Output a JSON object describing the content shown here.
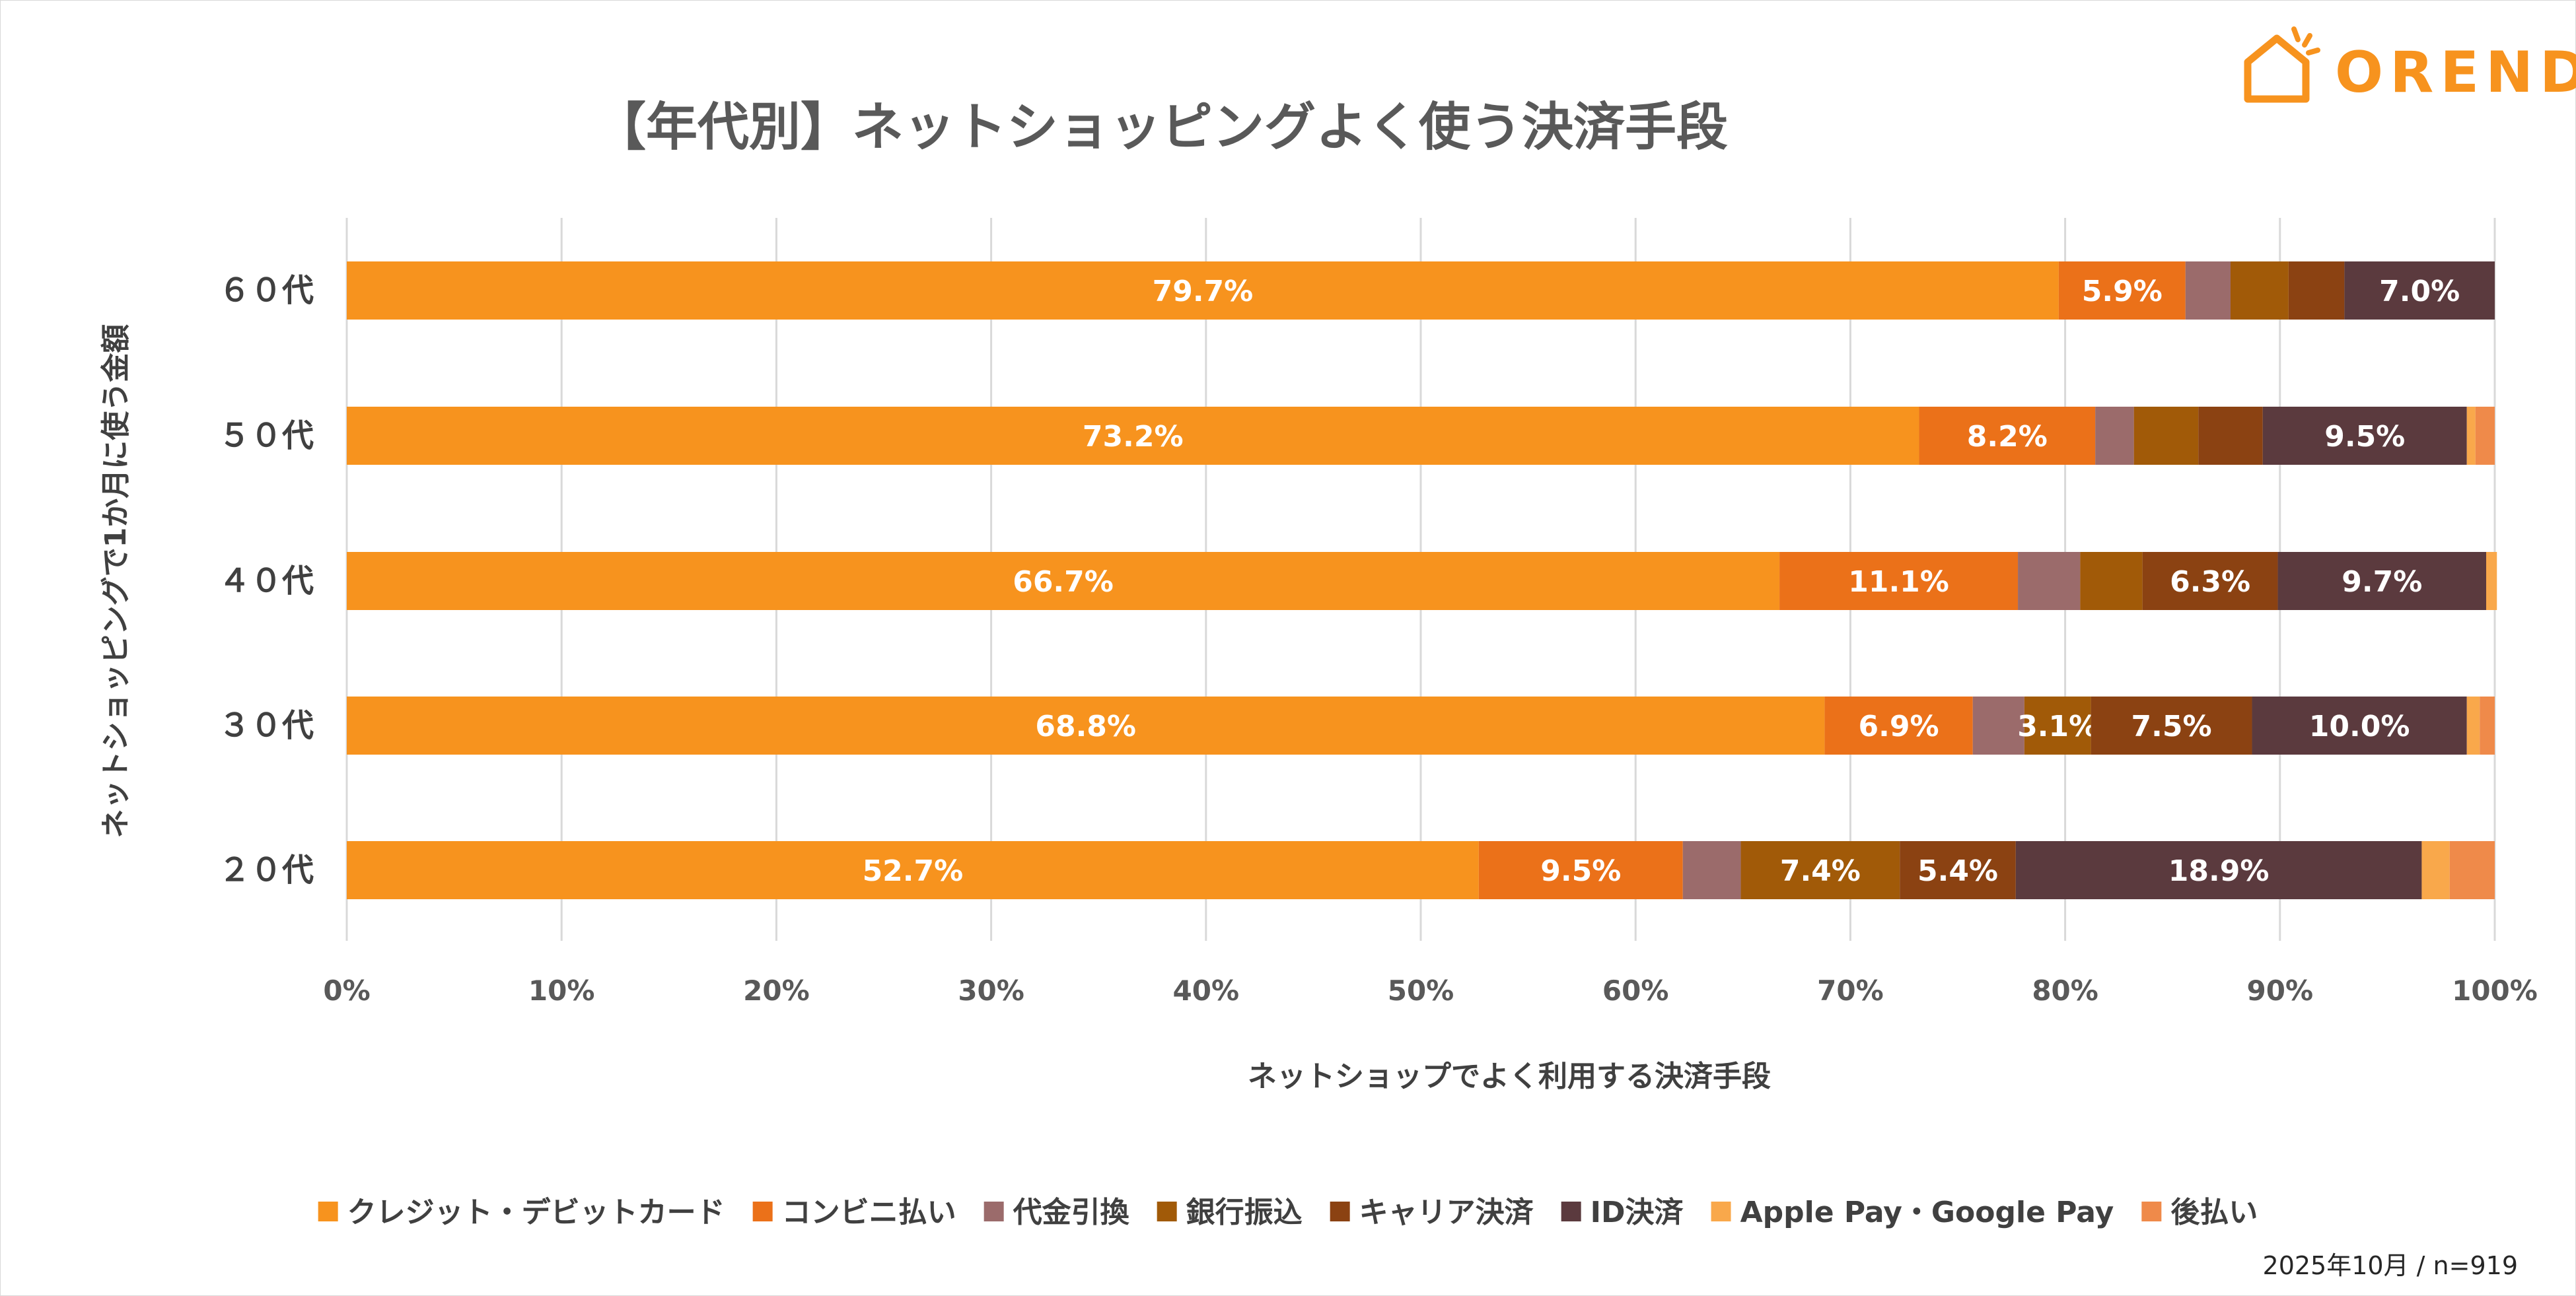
{
  "title": "【年代別】ネットショッピングよく使う決済手段",
  "logo_text": "OREND",
  "footnote": "2025年10月 / n=919",
  "chart_data": {
    "type": "bar",
    "orientation": "horizontal",
    "stacked": "percent",
    "xlabel": "ネットショップでよく利用する決済手段",
    "ylabel": "ネットショッピングで1か月に使う金額",
    "xlim": [
      0,
      100
    ],
    "xticks": [
      "0%",
      "10%",
      "20%",
      "30%",
      "40%",
      "50%",
      "60%",
      "70%",
      "80%",
      "90%",
      "100%"
    ],
    "grid": true,
    "legend_position": "bottom",
    "categories": [
      "６０代",
      "５０代",
      "４０代",
      "３０代",
      "２０代"
    ],
    "series": [
      {
        "name": "クレジット・デビットカード",
        "color": "#f7931e",
        "values": [
          79.7,
          73.2,
          66.7,
          68.8,
          52.7
        ],
        "labels": [
          "79.7%",
          "73.2%",
          "66.7%",
          "68.8%",
          "52.7%"
        ]
      },
      {
        "name": "コンビニ払い",
        "color": "#eb7119",
        "values": [
          5.9,
          8.2,
          11.1,
          6.9,
          9.5
        ],
        "labels": [
          "5.9%",
          "8.2%",
          "11.1%",
          "6.9%",
          "9.5%"
        ]
      },
      {
        "name": "代金引換",
        "color": "#9b6b6b",
        "values": [
          2.1,
          1.8,
          2.9,
          2.4,
          2.7
        ],
        "labels": [
          "",
          "",
          "",
          "",
          ""
        ]
      },
      {
        "name": "銀行振込",
        "color": "#a15a08",
        "values": [
          2.7,
          3.0,
          2.9,
          3.1,
          7.4
        ],
        "labels": [
          "",
          "",
          "",
          "3.1%",
          "7.4%"
        ]
      },
      {
        "name": "キャリア決済",
        "color": "#8b4212",
        "values": [
          2.6,
          3.0,
          6.3,
          7.5,
          5.4
        ],
        "labels": [
          "",
          "",
          "6.3%",
          "7.5%",
          "5.4%"
        ]
      },
      {
        "name": "ID決済",
        "color": "#5b3a3e",
        "values": [
          7.0,
          9.5,
          9.7,
          10.0,
          18.9
        ],
        "labels": [
          "7.0%",
          "9.5%",
          "9.7%",
          "10.0%",
          "18.9%"
        ]
      },
      {
        "name": "Apple Pay・Google Pay",
        "color": "#f9a84b",
        "values": [
          0,
          0.4,
          0.5,
          0.6,
          1.3
        ],
        "labels": [
          "",
          "",
          "",
          "",
          ""
        ]
      },
      {
        "name": "後払い",
        "color": "#ef8a4a",
        "values": [
          0,
          0.9,
          0,
          0.7,
          2.1
        ],
        "labels": [
          "",
          "",
          "",
          "",
          ""
        ]
      }
    ]
  }
}
